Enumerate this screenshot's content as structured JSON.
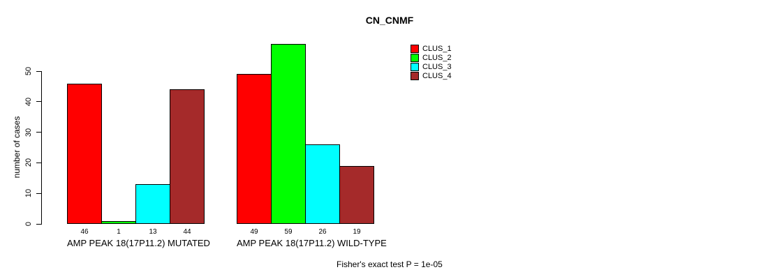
{
  "chart_data": {
    "type": "bar",
    "title": "CN_CNMF",
    "ylabel": "number of cases",
    "yticks": [
      0,
      10,
      20,
      30,
      40,
      50
    ],
    "ylim": [
      0,
      59
    ],
    "grid": false,
    "legend_position": "top-right",
    "series": [
      {
        "name": "CLUS_1",
        "color": "#ff0000"
      },
      {
        "name": "CLUS_2",
        "color": "#00ff00"
      },
      {
        "name": "CLUS_3",
        "color": "#00ffff"
      },
      {
        "name": "CLUS_4",
        "color": "#a52a2a"
      }
    ],
    "groups": [
      {
        "label": "AMP PEAK 18(17P11.2) MUTATED",
        "values": [
          46,
          1,
          13,
          44
        ]
      },
      {
        "label": "AMP PEAK 18(17P11.2) WILD-TYPE",
        "values": [
          49,
          59,
          26,
          19
        ]
      }
    ],
    "annotation": "Fisher's exact test P = 1e-05"
  }
}
